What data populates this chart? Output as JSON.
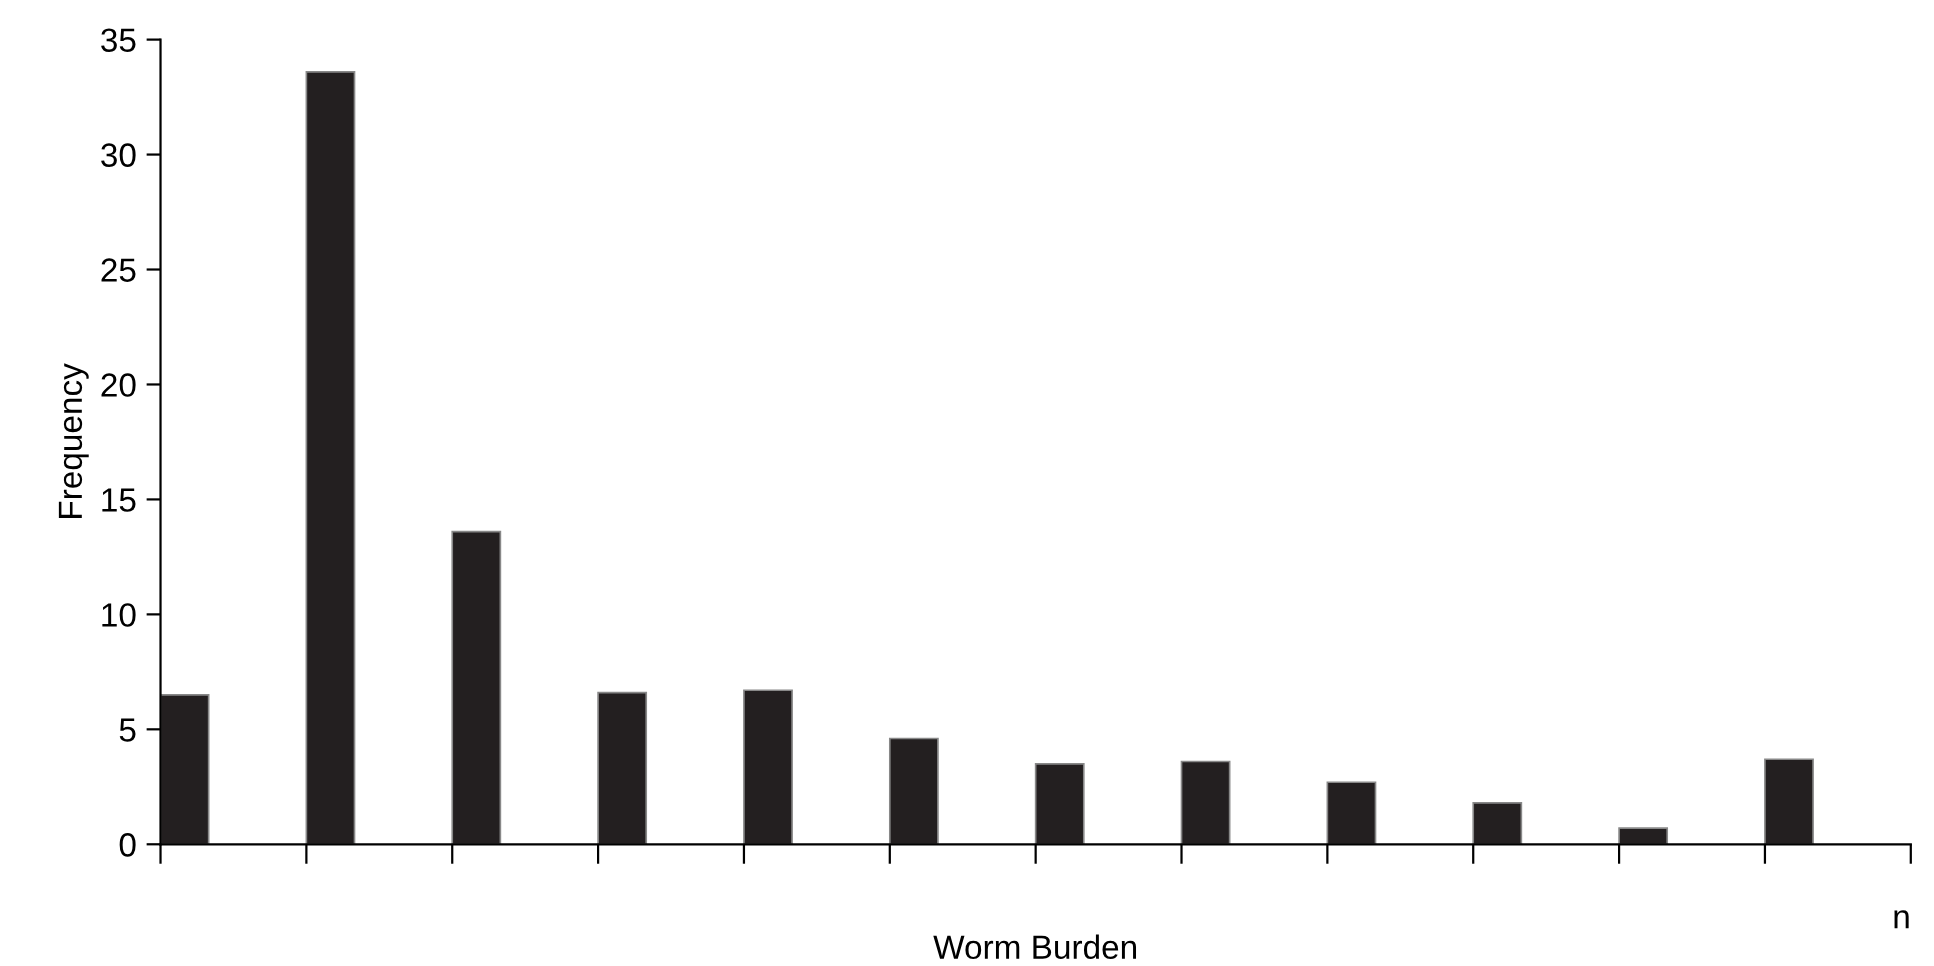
{
  "chart_data": {
    "type": "bar",
    "xlabel": "Worm Burden",
    "ylabel": "Frequency",
    "categories": [
      null,
      null,
      null,
      null,
      null,
      null,
      null,
      null,
      null,
      null,
      null,
      null
    ],
    "values": [
      6.5,
      33.6,
      13.6,
      6.6,
      6.7,
      4.6,
      3.5,
      3.6,
      2.7,
      1.8,
      0.7,
      3.7
    ],
    "color": "#231f20",
    "ylim": [
      0,
      35
    ],
    "yticks": [
      0,
      5,
      10,
      15,
      20,
      25,
      30,
      35
    ],
    "grid": false,
    "annotations": [
      "n"
    ]
  }
}
